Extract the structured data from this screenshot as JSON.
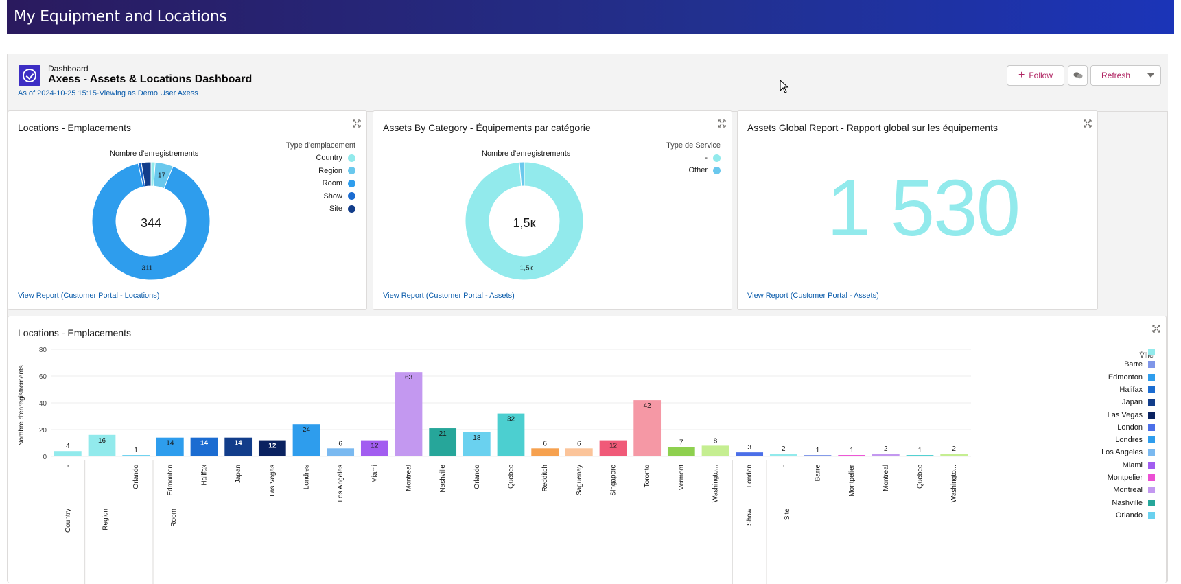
{
  "banner": {
    "title": "My Equipment and Locations"
  },
  "header": {
    "kind": "Dashboard",
    "title": "Axess - Assets & Locations Dashboard",
    "meta": "As of 2024-10-25 15:15·Viewing as Demo User Axess",
    "follow_label": "Follow",
    "refresh_label": "Refresh"
  },
  "card1": {
    "title": "Locations - Emplacements",
    "link": "View Report (Customer Portal - Locations)",
    "caption": "Nombre d'enregistrements",
    "center": "344",
    "legend_title": "Type d'emplacement",
    "legend": [
      {
        "label": "Country",
        "color": "#92eaec"
      },
      {
        "label": "Region",
        "color": "#6ac8ed"
      },
      {
        "label": "Room",
        "color": "#2e9ded"
      },
      {
        "label": "Show",
        "color": "#1b6cd1"
      },
      {
        "label": "Site",
        "color": "#123d8a"
      }
    ]
  },
  "card2": {
    "title": "Assets By Category - Équipements par catégorie",
    "link": "View Report (Customer Portal - Assets)",
    "caption": "Nombre d'enregistrements",
    "center": "1,5к",
    "legend_title": "Type de Service",
    "legend": [
      {
        "label": "-",
        "color": "#92eaec"
      },
      {
        "label": "Other",
        "color": "#6ac8ed"
      }
    ]
  },
  "card3": {
    "title": "Assets Global Report - Rapport global sur les équipements",
    "link": "View Report (Customer Portal - Assets)",
    "value": "1 530"
  },
  "card4": {
    "title": "Locations - Emplacements",
    "legend_title": "Ville",
    "legend": [
      {
        "label": "-",
        "color": "#92eaec"
      },
      {
        "label": "Barre",
        "color": "#7f96e8"
      },
      {
        "label": "Edmonton",
        "color": "#2e9ded"
      },
      {
        "label": "Halifax",
        "color": "#1b6cd1"
      },
      {
        "label": "Japan",
        "color": "#123d8a"
      },
      {
        "label": "Las Vegas",
        "color": "#0a2260"
      },
      {
        "label": "London",
        "color": "#4b6fe8"
      },
      {
        "label": "Londres",
        "color": "#2e9ded"
      },
      {
        "label": "Los Angeles",
        "color": "#7ab9f0"
      },
      {
        "label": "Miami",
        "color": "#a25df0"
      },
      {
        "label": "Montpelier",
        "color": "#ec4fd4"
      },
      {
        "label": "Montreal",
        "color": "#c398f0"
      },
      {
        "label": "Nashville",
        "color": "#26a69a"
      },
      {
        "label": "Orlando",
        "color": "#6ad1ef"
      }
    ]
  },
  "chart_data": [
    {
      "type": "pie",
      "donut": true,
      "title": "Locations - Emplacements",
      "caption": "Nombre d'enregistrements",
      "total": 344,
      "slices": [
        {
          "label": "Country",
          "value": 4,
          "color": "#92eaec"
        },
        {
          "label": "Region",
          "value": 17,
          "color": "#6ac8ed"
        },
        {
          "label": "Room",
          "value": 311,
          "color": "#2e9ded"
        },
        {
          "label": "Show",
          "value": 3,
          "color": "#1b6cd1"
        },
        {
          "label": "Site",
          "value": 9,
          "color": "#123d8a"
        }
      ],
      "data_labels": {
        "Region": "17",
        "Room": "311"
      }
    },
    {
      "type": "pie",
      "donut": true,
      "title": "Assets By Category - Équipements par catégorie",
      "caption": "Nombre d'enregistrements",
      "slices": [
        {
          "label": "-",
          "value": 1510,
          "color": "#92eaec"
        },
        {
          "label": "Other",
          "value": 20,
          "color": "#6ac8ed"
        }
      ],
      "data_labels": {
        "-": "1,5к"
      }
    },
    {
      "type": "bar",
      "title": "Locations - Emplacements",
      "ylabel": "Nombre d'enregistrements",
      "ylim": [
        0,
        80
      ],
      "yticks": [
        0,
        20,
        40,
        60,
        80
      ],
      "grid": true,
      "legend_position": "right",
      "groups": [
        {
          "label": "Country",
          "categories": [
            {
              "city": "-",
              "value": 4,
              "color": "#92eaec"
            }
          ]
        },
        {
          "label": "Region",
          "categories": [
            {
              "city": "-",
              "value": 16,
              "color": "#92eaec"
            },
            {
              "city": "Orlando",
              "value": 1,
              "color": "#6ad1ef"
            }
          ]
        },
        {
          "label": "Room",
          "categories": [
            {
              "city": "Edmonton",
              "value": 14,
              "color": "#2e9ded"
            },
            {
              "city": "Halifax",
              "value": 14,
              "color": "#1b6cd1"
            },
            {
              "city": "Japan",
              "value": 14,
              "color": "#123d8a"
            },
            {
              "city": "Las Vegas",
              "value": 12,
              "color": "#0a2260"
            },
            {
              "city": "Londres",
              "value": 24,
              "color": "#2e9ded"
            },
            {
              "city": "Los Angeles",
              "value": 6,
              "color": "#7ab9f0"
            },
            {
              "city": "Miami",
              "value": 12,
              "color": "#a25df0"
            },
            {
              "city": "Montreal",
              "value": 63,
              "color": "#c398f0"
            },
            {
              "city": "Nashville",
              "value": 21,
              "color": "#26a69a"
            },
            {
              "city": "Orlando",
              "value": 18,
              "color": "#6ad1ef"
            },
            {
              "city": "Quebec",
              "value": 32,
              "color": "#4ccfd0"
            },
            {
              "city": "Redditch",
              "value": 6,
              "color": "#f6a14f"
            },
            {
              "city": "Saguenay",
              "value": 6,
              "color": "#fbc49a"
            },
            {
              "city": "Singapore",
              "value": 12,
              "color": "#f05a78"
            },
            {
              "city": "Toronto",
              "value": 42,
              "color": "#f598a5"
            },
            {
              "city": "Vermont",
              "value": 7,
              "color": "#8ed04f"
            },
            {
              "city": "Washingto...",
              "value": 8,
              "color": "#c5ee91"
            }
          ]
        },
        {
          "label": "Show",
          "categories": [
            {
              "city": "London",
              "value": 3,
              "color": "#4b6fe8"
            }
          ]
        },
        {
          "label": "Site",
          "categories": [
            {
              "city": "-",
              "value": 2,
              "color": "#92eaec"
            },
            {
              "city": "Barre",
              "value": 1,
              "color": "#7f96e8"
            },
            {
              "city": "Montpelier",
              "value": 1,
              "color": "#ec4fd4"
            },
            {
              "city": "Montreal",
              "value": 2,
              "color": "#c398f0"
            },
            {
              "city": "Quebec",
              "value": 1,
              "color": "#4ccfd0"
            },
            {
              "city": "Washingto...",
              "value": 2,
              "color": "#c5ee91"
            }
          ]
        }
      ]
    }
  ]
}
